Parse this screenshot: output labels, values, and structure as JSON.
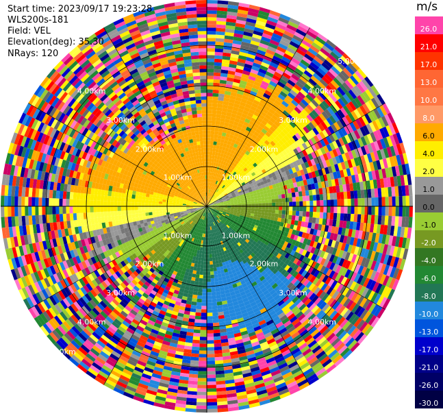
{
  "header": {
    "start_time": "Start time: 2023/09/17 19:23:28",
    "site": "WLS200s-181",
    "field": "Field: VEL",
    "elevation": "Elevation(deg): 35.30",
    "nrays": "NRays: 120"
  },
  "colorbar": {
    "unit": "m/s",
    "levels": [
      {
        "label": "26.0",
        "color": "#ff44aa"
      },
      {
        "label": "21.0",
        "color": "#ff0000"
      },
      {
        "label": "17.0",
        "color": "#ff3300"
      },
      {
        "label": "13.0",
        "color": "#ff6633"
      },
      {
        "label": "10.0",
        "color": "#ff7744"
      },
      {
        "label": "8.0",
        "color": "#ff9966"
      },
      {
        "label": "6.0",
        "color": "#ffaa00"
      },
      {
        "label": "4.0",
        "color": "#ffee00"
      },
      {
        "label": "2.0",
        "color": "#ffff44"
      },
      {
        "label": "1.0",
        "color": "#999999"
      },
      {
        "label": "0.0",
        "color": "#666666"
      },
      {
        "label": "-1.0",
        "color": "#99cc33"
      },
      {
        "label": "-2.0",
        "color": "#779922"
      },
      {
        "label": "-4.0",
        "color": "#337722"
      },
      {
        "label": "-6.0",
        "color": "#228833"
      },
      {
        "label": "-8.0",
        "color": "#227755"
      },
      {
        "label": "-10.0",
        "color": "#2288dd"
      },
      {
        "label": "-13.0",
        "color": "#0055dd"
      },
      {
        "label": "-17.0",
        "color": "#0000cc"
      },
      {
        "label": "-21.0",
        "color": "#000088"
      },
      {
        "label": "-26.0",
        "color": "#000066"
      },
      {
        "label": "-30.0",
        "color": "#000044"
      }
    ]
  },
  "range_rings": {
    "labels": [
      "1.00km",
      "2.00km",
      "3.00km",
      "4.00km",
      "5.00km"
    ]
  },
  "colors": {
    "grid_line": "#000000",
    "ring_label": "#ffffff"
  }
}
